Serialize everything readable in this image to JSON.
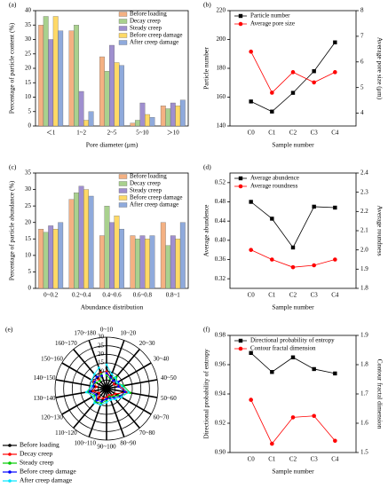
{
  "chart_data": [
    {
      "type": "bar",
      "label": "(a)",
      "xlabel": "Pore diameter (μm)",
      "ylabel": "Percentage of particle content (%)",
      "categories": [
        "＜1",
        "1~2",
        "2~5",
        "5~10",
        "＞10"
      ],
      "series": [
        {
          "name": "Before loading",
          "color": "#f4b183",
          "values": [
            35,
            33,
            24,
            1,
            7
          ]
        },
        {
          "name": "Decay creep",
          "color": "#a9d18e",
          "values": [
            38,
            35,
            19,
            2,
            6
          ]
        },
        {
          "name": "Steady creep",
          "color": "#9f8fcf",
          "values": [
            30,
            12,
            28,
            8,
            8
          ]
        },
        {
          "name": "Before creep damage",
          "color": "#ffd966",
          "values": [
            38,
            2,
            22,
            4,
            7
          ]
        },
        {
          "name": "After creep damage",
          "color": "#8faadc",
          "values": [
            33,
            5,
            21,
            3,
            9
          ]
        }
      ],
      "ylim": [
        0,
        40
      ],
      "yticks": [
        0,
        5,
        10,
        15,
        20,
        25,
        30,
        35,
        40
      ],
      "legend": "upper right"
    },
    {
      "type": "line",
      "label": "(b)",
      "xlabel": "Sample number",
      "ylabel": "Particle number",
      "y2label": "Average pore size (μm)",
      "categories": [
        "C0",
        "C1",
        "C2",
        "C3",
        "C4"
      ],
      "series": [
        {
          "name": "Particle number",
          "color": "#000000",
          "marker": "square",
          "values": [
            157,
            150,
            163,
            178,
            198
          ]
        },
        {
          "name": "Average pore size",
          "color": "#ff0000",
          "marker": "circle",
          "axis": "y2",
          "values": [
            6.4,
            4.8,
            5.6,
            5.2,
            5.6
          ]
        }
      ],
      "ylim": [
        140,
        220
      ],
      "yticks": [
        140,
        160,
        180,
        200,
        220
      ],
      "y2lim": [
        3.5,
        8
      ],
      "y2ticks": [
        4,
        5,
        6,
        7,
        8
      ],
      "legend": "upper left"
    },
    {
      "type": "bar",
      "label": "(c)",
      "xlabel": "Abundance distribution",
      "ylabel": "Percentage of particle abundance (%)",
      "categories": [
        "0~0.2",
        "0.2~0.4",
        "0.4~0.6",
        "0.6~0.8",
        "0.8~1"
      ],
      "series": [
        {
          "name": "Before loading",
          "color": "#f4b183",
          "values": [
            18,
            27,
            16,
            16,
            20
          ]
        },
        {
          "name": "Decay creep",
          "color": "#a9d18e",
          "values": [
            17,
            29,
            25,
            15,
            13
          ]
        },
        {
          "name": "Steady creep",
          "color": "#9f8fcf",
          "values": [
            19,
            31,
            20,
            16,
            16
          ]
        },
        {
          "name": "Before creep damage",
          "color": "#ffd966",
          "values": [
            18,
            30,
            22,
            15,
            15
          ]
        },
        {
          "name": "After creep damage",
          "color": "#8faadc",
          "values": [
            20,
            28,
            18,
            16,
            20
          ]
        }
      ],
      "ylim": [
        0,
        35
      ],
      "yticks": [
        0,
        5,
        10,
        15,
        20,
        25,
        30,
        35
      ],
      "legend": "upper right"
    },
    {
      "type": "line",
      "label": "(d)",
      "xlabel": "Sample number",
      "ylabel": "Average abundence",
      "y2label": "Average roundness",
      "categories": [
        "C0",
        "C1",
        "C2",
        "C3",
        "C4"
      ],
      "series": [
        {
          "name": "Average abundence",
          "color": "#000000",
          "marker": "square",
          "values": [
            0.48,
            0.445,
            0.385,
            0.47,
            0.468
          ]
        },
        {
          "name": "Average roundness",
          "color": "#ff0000",
          "marker": "circle",
          "axis": "y2",
          "values": [
            2.0,
            1.95,
            1.91,
            1.92,
            1.95
          ]
        }
      ],
      "ylim": [
        0.3,
        0.54
      ],
      "yticks": [
        0.32,
        0.36,
        {
          "value": 0.4,
          "label": "0.40"
        },
        0.44,
        0.48,
        0.52
      ],
      "y2lim": [
        1.8,
        2.4
      ],
      "y2ticks": [
        1.8,
        1.9,
        {
          "value": 2,
          "label": "2.0"
        },
        2.1,
        2.2,
        2.3,
        2.4
      ],
      "legend": "upper left"
    },
    {
      "type": "polar",
      "label": "(e)",
      "categories": [
        "0~10",
        "10~20",
        "20~30",
        "30~40",
        "40~50",
        "50~60",
        "60~70",
        "70~80",
        "80~90",
        "90~100",
        "100~110",
        "110~120",
        "120~130",
        "130~140",
        "140~150",
        "150~160",
        "160~170",
        "170~180"
      ],
      "series": [
        {
          "name": "Before loading",
          "color": "#000000",
          "values": [
            12,
            8,
            7,
            6,
            9,
            10,
            7,
            6,
            5,
            6,
            7,
            8,
            6,
            9,
            7,
            10,
            8,
            11
          ]
        },
        {
          "name": "Decay creep",
          "color": "#ff0000",
          "values": [
            10,
            7,
            6,
            5,
            8,
            12,
            6,
            5,
            4,
            5,
            6,
            7,
            5,
            8,
            6,
            9,
            7,
            10
          ]
        },
        {
          "name": "Steady creep",
          "color": "#00cc00",
          "values": [
            8,
            6,
            9,
            7,
            10,
            14,
            8,
            6,
            5,
            7,
            9,
            10,
            8,
            11,
            9,
            7,
            6,
            9
          ]
        },
        {
          "name": "Before creep damage",
          "color": "#0000ff",
          "values": [
            9,
            7,
            6,
            8,
            7,
            11,
            9,
            7,
            6,
            6,
            8,
            9,
            7,
            10,
            8,
            8,
            9,
            8
          ]
        },
        {
          "name": "After creep damage",
          "color": "#00e5ff",
          "values": [
            14,
            9,
            8,
            7,
            9,
            13,
            10,
            8,
            7,
            8,
            10,
            11,
            9,
            12,
            9,
            10,
            11,
            13
          ]
        }
      ],
      "rlim": [
        0,
        30
      ],
      "rticks": [
        0,
        5,
        10,
        15,
        20,
        25,
        30
      ],
      "legend": "lower left"
    },
    {
      "type": "line",
      "label": "(f)",
      "xlabel": "Sample number",
      "ylabel": "Directional probability of entropy",
      "y2label": "Contour fractal dimension",
      "categories": [
        "C0",
        "C1",
        "C2",
        "C3",
        "C4"
      ],
      "series": [
        {
          "name": "Directional probability of entropy",
          "color": "#000000",
          "marker": "square",
          "values": [
            0.968,
            0.955,
            0.965,
            0.957,
            0.954
          ]
        },
        {
          "name": "Contour fractal dimension",
          "color": "#ff0000",
          "marker": "circle",
          "axis": "y2",
          "values": [
            1.68,
            1.53,
            1.62,
            1.625,
            1.54
          ]
        }
      ],
      "ylim": [
        0.9,
        0.98
      ],
      "yticks": [
        {
          "value": 0.9,
          "label": "0.90"
        },
        0.92,
        0.94,
        0.96,
        0.98
      ],
      "y2lim": [
        1.5,
        1.9
      ],
      "y2ticks": [
        1.5,
        1.6,
        1.7,
        1.8,
        1.9
      ],
      "legend": "upper left"
    }
  ]
}
